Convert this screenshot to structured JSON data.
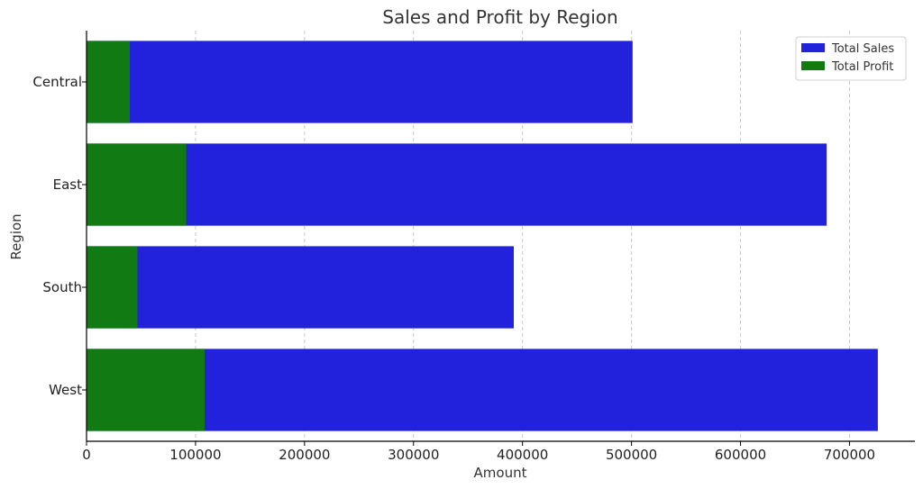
{
  "chart_data": {
    "type": "bar",
    "orientation": "horizontal",
    "title": "Sales and Profit by Region",
    "xlabel": "Amount",
    "ylabel": "Region",
    "categories": [
      "Central",
      "East",
      "South",
      "West"
    ],
    "series": [
      {
        "name": "Total Sales",
        "color": "#2222dd",
        "values": [
          501000,
          679000,
          392000,
          726000
        ]
      },
      {
        "name": "Total Profit",
        "color": "#127a12",
        "values": [
          39700,
          91500,
          46700,
          108400
        ]
      }
    ],
    "xlim": [
      0,
      760000
    ],
    "xticks": [
      0,
      100000,
      200000,
      300000,
      400000,
      500000,
      600000,
      700000
    ],
    "xtick_labels": [
      "0",
      "100000",
      "200000",
      "300000",
      "400000",
      "500000",
      "600000",
      "700000"
    ],
    "grid": "x",
    "legend": "top-right"
  }
}
